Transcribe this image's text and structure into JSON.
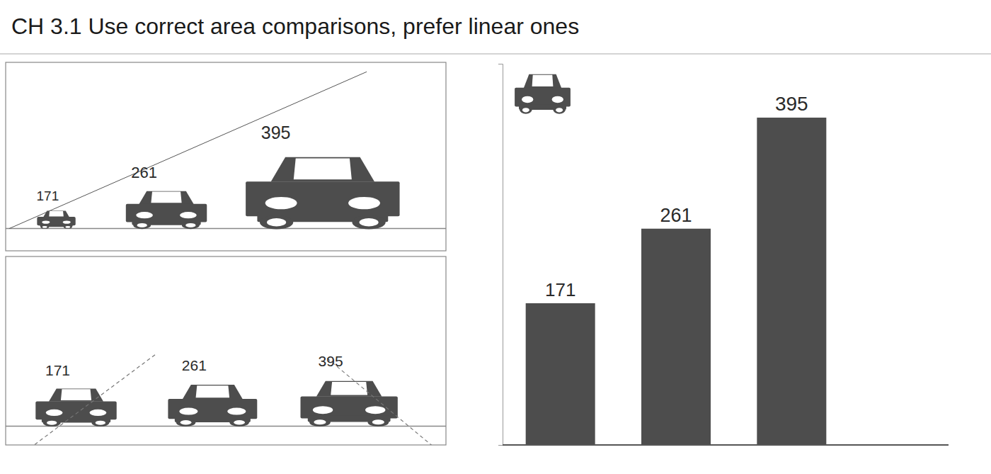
{
  "chart_data": {
    "type": "bar",
    "title": "CH 3.1   Use correct area comparisons, prefer linear ones",
    "categories": [
      null,
      null,
      null
    ],
    "values": [
      171,
      261,
      395
    ],
    "color": "#4d4d4d",
    "ylim": [
      0,
      460
    ],
    "tick_labels": false,
    "data_labels": true,
    "grid": false
  }
}
